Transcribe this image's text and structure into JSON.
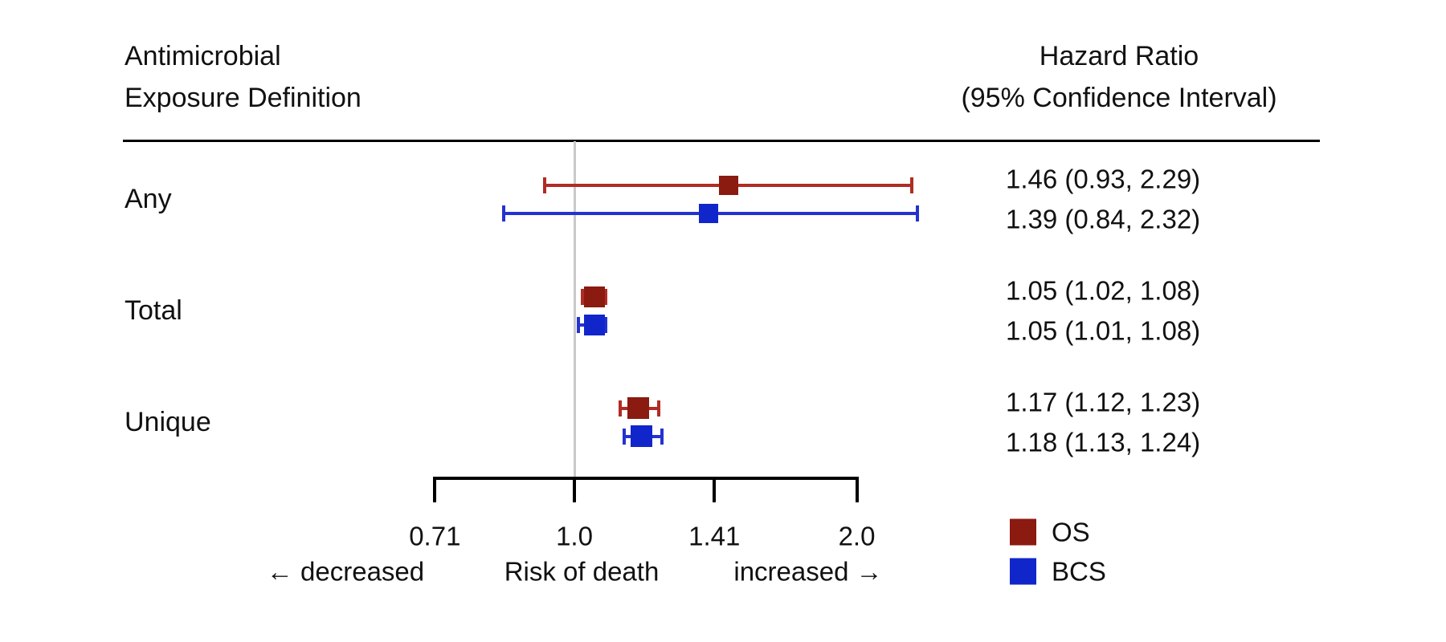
{
  "header": {
    "left_line1": "Antimicrobial",
    "left_line2": "Exposure Definition",
    "right_line1": "Hazard Ratio",
    "right_line2": "(95% Confidence Interval)"
  },
  "chart_data": {
    "type": "forest",
    "x_scale": "log2",
    "x_ticks": [
      0.71,
      1.0,
      1.41,
      2.0
    ],
    "x_tick_labels": [
      "0.71",
      "1.0",
      "1.41",
      "2.0"
    ],
    "x_range": [
      0.71,
      2.0
    ],
    "reference_line": 1.0,
    "x_axis_caption": {
      "left": "← decreased",
      "center": "Risk of death",
      "right": "increased →"
    },
    "series": [
      {
        "name": "OS",
        "line_color": "#b02c24",
        "fill_color": "#8b1a10"
      },
      {
        "name": "BCS",
        "line_color": "#2433cf",
        "fill_color": "#1126ca"
      }
    ],
    "groups": [
      {
        "label": "Any",
        "entries": [
          {
            "series": "OS",
            "estimate": 1.46,
            "ci_low": 0.93,
            "ci_high": 2.29,
            "text": "1.46 (0.93, 2.29)",
            "marker_size": 24
          },
          {
            "series": "BCS",
            "estimate": 1.39,
            "ci_low": 0.84,
            "ci_high": 2.32,
            "text": "1.39 (0.84, 2.32)",
            "marker_size": 24
          }
        ]
      },
      {
        "label": "Total",
        "entries": [
          {
            "series": "OS",
            "estimate": 1.05,
            "ci_low": 1.02,
            "ci_high": 1.08,
            "text": "1.05 (1.02, 1.08)",
            "marker_size": 26
          },
          {
            "series": "BCS",
            "estimate": 1.05,
            "ci_low": 1.01,
            "ci_high": 1.08,
            "text": "1.05 (1.01, 1.08)",
            "marker_size": 26
          }
        ]
      },
      {
        "label": "Unique",
        "entries": [
          {
            "series": "OS",
            "estimate": 1.17,
            "ci_low": 1.12,
            "ci_high": 1.23,
            "text": "1.17 (1.12, 1.23)",
            "marker_size": 27
          },
          {
            "series": "BCS",
            "estimate": 1.18,
            "ci_low": 1.13,
            "ci_high": 1.24,
            "text": "1.18 (1.13, 1.24)",
            "marker_size": 27
          }
        ]
      }
    ]
  },
  "legend": {
    "items": [
      {
        "label": "OS",
        "color": "#8b1a10"
      },
      {
        "label": "BCS",
        "color": "#1126ca"
      }
    ]
  },
  "colors": {
    "text": "#111111",
    "separator": "#000000",
    "reference_line": "#c9c9c9",
    "axis": "#000000"
  }
}
